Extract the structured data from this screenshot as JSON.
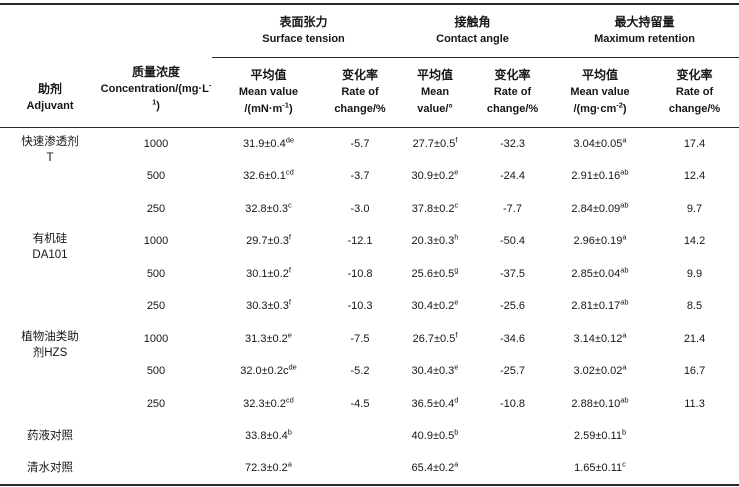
{
  "colors": {
    "background": "#ffffff",
    "text": "#161616",
    "rule": "#2a2a2a"
  },
  "header": {
    "adjuvant": {
      "zh": "助剂",
      "en": "Adjuvant"
    },
    "concentration": {
      "zh": "质量浓度",
      "en_pre": "Concentration/(mg·L",
      "en_sup": "-1",
      "en_post": ")"
    },
    "groups": {
      "surface_tension": {
        "zh": "表面张力",
        "en": "Surface tension"
      },
      "contact_angle": {
        "zh": "接触角",
        "en": "Contact angle"
      },
      "max_retention": {
        "zh": "最大持留量",
        "en": "Maximum retention"
      }
    },
    "sub": {
      "st_mean": {
        "zh": "平均值",
        "en": "Mean value",
        "unit_pre": "/(mN·m",
        "unit_sup": "-1",
        "unit_post": ")"
      },
      "st_rate": {
        "zh": "变化率",
        "en": "Rate of",
        "unit": "change/%"
      },
      "ca_mean": {
        "zh": "平均值",
        "en": "Mean",
        "unit": "value/°"
      },
      "ca_rate": {
        "zh": "变化率",
        "en": "Rate of",
        "unit": "change/%"
      },
      "mr_mean": {
        "zh": "平均值",
        "en": "Mean value",
        "unit_pre": "/(mg·cm",
        "unit_sup": "-2",
        "unit_post": ")"
      },
      "mr_rate": {
        "zh": "变化率",
        "en": "Rate of",
        "unit": "change/%"
      }
    }
  },
  "rows": [
    {
      "adjuvant": [
        "快速渗透剂",
        "T"
      ],
      "rowspan": 3,
      "concentration": "1000",
      "values": [
        {
          "v": "31.9±0.4",
          "sup": "de"
        },
        {
          "v": "-5.7"
        },
        {
          "v": "27.7±0.5",
          "sup": "f"
        },
        {
          "v": "-32.3"
        },
        {
          "v": "3.04±0.05",
          "sup": "a"
        },
        {
          "v": "17.4"
        }
      ]
    },
    {
      "concentration": "500",
      "values": [
        {
          "v": "32.6±0.1",
          "sup": "cd"
        },
        {
          "v": "-3.7"
        },
        {
          "v": "30.9±0.2",
          "sup": "e"
        },
        {
          "v": "-24.4"
        },
        {
          "v": "2.91±0.16",
          "sup": "ab"
        },
        {
          "v": "12.4"
        }
      ]
    },
    {
      "concentration": "250",
      "values": [
        {
          "v": "32.8±0.3",
          "sup": "c"
        },
        {
          "v": "-3.0"
        },
        {
          "v": "37.8±0.2",
          "sup": "c"
        },
        {
          "v": "-7.7"
        },
        {
          "v": "2.84±0.09",
          "sup": "ab"
        },
        {
          "v": "9.7"
        }
      ]
    },
    {
      "adjuvant": [
        "有机硅",
        "DA101"
      ],
      "rowspan": 3,
      "concentration": "1000",
      "values": [
        {
          "v": "29.7±0.3",
          "sup": "f"
        },
        {
          "v": "-12.1"
        },
        {
          "v": "20.3±0.3",
          "sup": "h"
        },
        {
          "v": "-50.4"
        },
        {
          "v": "2.96±0.19",
          "sup": "a"
        },
        {
          "v": "14.2"
        }
      ]
    },
    {
      "concentration": "500",
      "values": [
        {
          "v": "30.1±0.2",
          "sup": "f"
        },
        {
          "v": "-10.8"
        },
        {
          "v": "25.6±0.5",
          "sup": "g"
        },
        {
          "v": "-37.5"
        },
        {
          "v": "2.85±0.04",
          "sup": "ab"
        },
        {
          "v": "9.9"
        }
      ]
    },
    {
      "concentration": "250",
      "values": [
        {
          "v": "30.3±0.3",
          "sup": "f"
        },
        {
          "v": "-10.3"
        },
        {
          "v": "30.4±0.2",
          "sup": "e"
        },
        {
          "v": "-25.6"
        },
        {
          "v": "2.81±0.17",
          "sup": "ab"
        },
        {
          "v": "8.5"
        }
      ]
    },
    {
      "adjuvant": [
        "植物油类助",
        "剂HZS"
      ],
      "rowspan": 3,
      "concentration": "1000",
      "values": [
        {
          "v": "31.3±0.2",
          "sup": "e"
        },
        {
          "v": "-7.5"
        },
        {
          "v": "26.7±0.5",
          "sup": "f"
        },
        {
          "v": "-34.6"
        },
        {
          "v": "3.14±0.12",
          "sup": "a"
        },
        {
          "v": "21.4"
        }
      ]
    },
    {
      "concentration": "500",
      "values": [
        {
          "v": "32.0±0.2c",
          "sup": "de"
        },
        {
          "v": "-5.2"
        },
        {
          "v": "30.4±0.3",
          "sup": "e"
        },
        {
          "v": "-25.7"
        },
        {
          "v": "3.02±0.02",
          "sup": "a"
        },
        {
          "v": "16.7"
        }
      ]
    },
    {
      "concentration": "250",
      "values": [
        {
          "v": "32.3±0.2",
          "sup": "cd"
        },
        {
          "v": "-4.5"
        },
        {
          "v": "36.5±0.4",
          "sup": "d"
        },
        {
          "v": "-10.8"
        },
        {
          "v": "2.88±0.10",
          "sup": "ab"
        },
        {
          "v": "11.3"
        }
      ]
    },
    {
      "adjuvant": [
        "药液对照"
      ],
      "rowspan": 1,
      "concentration": "",
      "values": [
        {
          "v": "33.8±0.4",
          "sup": "b"
        },
        {
          "v": ""
        },
        {
          "v": "40.9±0.5",
          "sup": "b"
        },
        {
          "v": ""
        },
        {
          "v": "2.59±0.11",
          "sup": "b"
        },
        {
          "v": ""
        }
      ]
    },
    {
      "adjuvant": [
        "清水对照"
      ],
      "rowspan": 1,
      "concentration": "",
      "values": [
        {
          "v": "72.3±0.2",
          "sup": "a"
        },
        {
          "v": ""
        },
        {
          "v": "65.4±0.2",
          "sup": "a"
        },
        {
          "v": ""
        },
        {
          "v": "1.65±0.11",
          "sup": "c"
        },
        {
          "v": ""
        }
      ]
    }
  ]
}
